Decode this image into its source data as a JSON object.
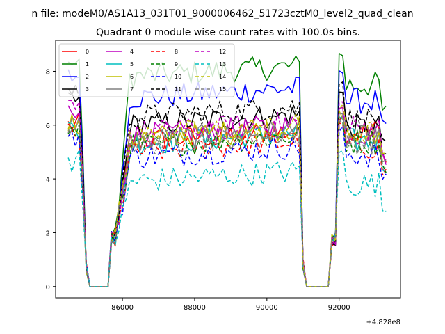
{
  "figure": {
    "suptitle": "n file: modeM0/AS1A13_031T01_9000006462_51723cztM0_level2_quad_clean",
    "offset_label": "+4.828e8"
  },
  "chart_data": {
    "type": "line",
    "title": "Quadrant 0 module wise count rates with 100.0s bins.",
    "xlabel": "",
    "ylabel": "",
    "x_offset": 482800000,
    "xlim": [
      84150,
      93700
    ],
    "ylim": [
      -0.42,
      9.15
    ],
    "grid": false,
    "legend_placement": "top-left",
    "xticks": [
      86000,
      88000,
      90000,
      92000
    ],
    "xtick_labels": [
      "86000",
      "88000",
      "90000",
      "92000"
    ],
    "yticks": [
      0,
      2,
      4,
      6,
      8
    ],
    "ytick_labels": [
      "0",
      "2",
      "4",
      "6",
      "8"
    ],
    "x_start": 84500,
    "x_step": 100,
    "n_points": 89,
    "segments_note_x": [
      84500,
      84900,
      85000,
      85100,
      85700,
      86200,
      91000,
      91100,
      91800,
      92100,
      93300
    ],
    "series": [
      {
        "name": "0",
        "color": "#ff0000",
        "dash": "solid",
        "active_level": 5.4,
        "peak": 6.3,
        "tail": 5.8
      },
      {
        "name": "1",
        "color": "#008000",
        "dash": "solid",
        "active_level": 7.8,
        "peak": 8.6,
        "tail": 7.5
      },
      {
        "name": "2",
        "color": "#0000ff",
        "dash": "solid",
        "active_level": 7.0,
        "peak": 8.1,
        "tail": 6.9
      },
      {
        "name": "3",
        "color": "#000000",
        "dash": "solid",
        "active_level": 6.0,
        "peak": 7.2,
        "tail": 5.9
      },
      {
        "name": "4",
        "color": "#bf00bf",
        "dash": "solid",
        "active_level": 5.6,
        "peak": 6.6,
        "tail": 5.7
      },
      {
        "name": "5",
        "color": "#00bfbf",
        "dash": "solid",
        "active_level": 5.3,
        "peak": 6.2,
        "tail": 5.4
      },
      {
        "name": "6",
        "color": "#bfbf00",
        "dash": "solid",
        "active_level": 5.5,
        "peak": 6.4,
        "tail": 5.6
      },
      {
        "name": "7",
        "color": "#808080",
        "dash": "solid",
        "active_level": 5.4,
        "peak": 6.3,
        "tail": 5.5
      },
      {
        "name": "8",
        "color": "#ff0000",
        "dash": "dashed",
        "active_level": 5.0,
        "peak": 6.0,
        "tail": 5.2
      },
      {
        "name": "9",
        "color": "#008000",
        "dash": "dashed",
        "active_level": 5.2,
        "peak": 6.1,
        "tail": 5.4
      },
      {
        "name": "10",
        "color": "#0000ff",
        "dash": "dashed",
        "active_level": 4.8,
        "peak": 5.8,
        "tail": 4.9
      },
      {
        "name": "11",
        "color": "#000000",
        "dash": "dashed",
        "active_level": 6.3,
        "peak": 7.6,
        "tail": 6.2
      },
      {
        "name": "12",
        "color": "#bf00bf",
        "dash": "dashed",
        "active_level": 5.7,
        "peak": 6.8,
        "tail": 5.9
      },
      {
        "name": "13",
        "color": "#00bfbf",
        "dash": "dashed",
        "active_level": 3.9,
        "peak": 5.0,
        "tail": 3.8
      },
      {
        "name": "14",
        "color": "#bfbf00",
        "dash": "dashed",
        "active_level": 5.6,
        "peak": 6.6,
        "tail": 5.7
      },
      {
        "name": "15",
        "color": "#808080",
        "dash": "dashed",
        "active_level": 5.3,
        "peak": 6.2,
        "tail": 5.4
      }
    ]
  }
}
